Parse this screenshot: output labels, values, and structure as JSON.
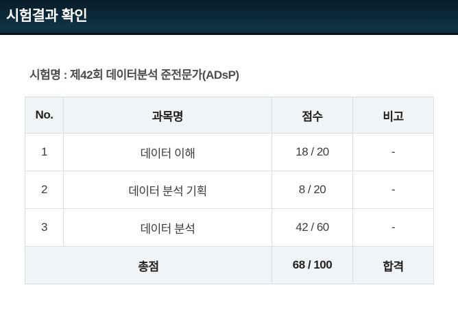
{
  "header": {
    "title": "시험결과 확인"
  },
  "exam": {
    "name_line": "시험명 : 제42회 데이터분석 준전문가(ADsP)"
  },
  "table": {
    "columns": [
      "No.",
      "과목명",
      "점수",
      "비고"
    ],
    "rows": [
      {
        "no": "1",
        "subject": "데이터 이해",
        "score": "18 / 20",
        "note": "-"
      },
      {
        "no": "2",
        "subject": "데이터 분석 기획",
        "score": "8 / 20",
        "note": "-"
      },
      {
        "no": "3",
        "subject": "데이터 분석",
        "score": "42 / 60",
        "note": "-"
      }
    ],
    "total": {
      "label": "총점",
      "score": "68 / 100",
      "result": "합격"
    }
  },
  "colors": {
    "topbar_gradient_top": "#081c29",
    "topbar_gradient_bottom": "#0f3747",
    "topbar_border_bottom": "#05121b",
    "table_head_bg": "#f1f4f6",
    "table_border": "#d8dee2",
    "title_text": "#ffffff",
    "body_text": "#3c3c3c"
  }
}
